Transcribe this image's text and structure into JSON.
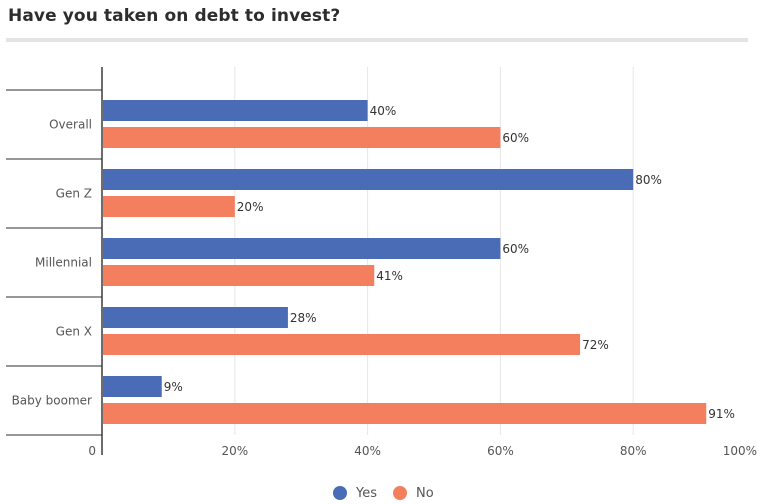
{
  "title": "Have you taken on debt to invest?",
  "chart_data": {
    "type": "bar",
    "orientation": "horizontal",
    "title": "Have you taken on debt to invest?",
    "categories": [
      "Overall",
      "Gen Z",
      "Millennial",
      "Gen X",
      "Baby boomer"
    ],
    "series": [
      {
        "name": "Yes",
        "values": [
          40,
          80,
          60,
          28,
          9
        ],
        "color": "#4a6bb5"
      },
      {
        "name": "No",
        "values": [
          60,
          20,
          41,
          72,
          91
        ],
        "color": "#f47f5f"
      }
    ],
    "xlim": [
      0,
      100
    ],
    "xticks": [
      0,
      20,
      40,
      60,
      80,
      100
    ],
    "xtick_labels": [
      "0",
      "20%",
      "40%",
      "60%",
      "80%",
      "100%"
    ],
    "value_suffix": "%",
    "grid": true,
    "legend_position": "bottom"
  }
}
